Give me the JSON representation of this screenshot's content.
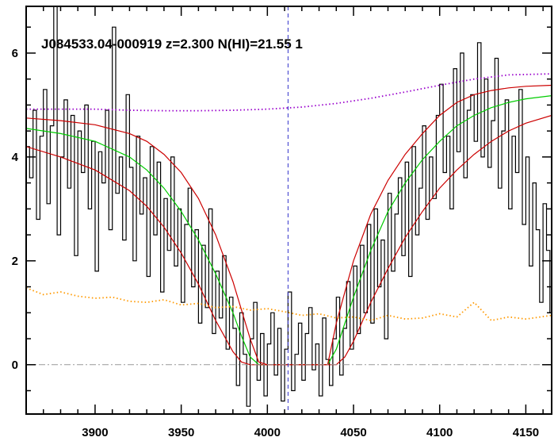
{
  "chart_data": {
    "type": "line",
    "title": "J084533.04-000919 z=2.300 N(HI)=21.55 1",
    "xlabel": "",
    "ylabel": "",
    "xlim": [
      3860,
      4165
    ],
    "ylim": [
      -0.95,
      6.9
    ],
    "xticks": [
      3900,
      3950,
      4000,
      4050,
      4100,
      4150
    ],
    "yticks": [
      0,
      2,
      4,
      6
    ],
    "grid": false,
    "reference_lines": {
      "vertical_dashed_x": 4012,
      "horizontal_dashdot_y": 0
    },
    "colors": {
      "flux": "#000000",
      "fit": "#00cc00",
      "fit_bounds": "#cc0000",
      "continuum": "#9900cc",
      "error": "#ff9900",
      "vline": "#3333cc",
      "hline": "#999999"
    },
    "series": [
      {
        "style": "steps",
        "color": "#000000",
        "x": [
          3860,
          3862,
          3864,
          3866,
          3868,
          3870,
          3872,
          3874,
          3876,
          3878,
          3880,
          3882,
          3884,
          3886,
          3888,
          3890,
          3892,
          3894,
          3896,
          3898,
          3900,
          3902,
          3904,
          3906,
          3908,
          3910,
          3912,
          3914,
          3916,
          3918,
          3920,
          3922,
          3924,
          3926,
          3928,
          3930,
          3932,
          3934,
          3936,
          3938,
          3940,
          3942,
          3944,
          3946,
          3948,
          3950,
          3952,
          3954,
          3956,
          3958,
          3960,
          3962,
          3964,
          3966,
          3968,
          3970,
          3972,
          3974,
          3976,
          3978,
          3980,
          3982,
          3984,
          3986,
          3988,
          3990,
          3992,
          3994,
          3996,
          3998,
          4000,
          4002,
          4004,
          4006,
          4008,
          4010,
          4012,
          4014,
          4016,
          4018,
          4020,
          4022,
          4024,
          4026,
          4028,
          4030,
          4032,
          4034,
          4036,
          4038,
          4040,
          4042,
          4044,
          4046,
          4048,
          4050,
          4052,
          4054,
          4056,
          4058,
          4060,
          4062,
          4064,
          4066,
          4068,
          4070,
          4072,
          4074,
          4076,
          4078,
          4080,
          4082,
          4084,
          4086,
          4088,
          4090,
          4092,
          4094,
          4096,
          4098,
          4100,
          4102,
          4104,
          4106,
          4108,
          4110,
          4112,
          4114,
          4116,
          4118,
          4120,
          4122,
          4124,
          4126,
          4128,
          4130,
          4132,
          4134,
          4136,
          4138,
          4140,
          4142,
          4144,
          4146,
          4148,
          4150,
          4152,
          4154,
          4156,
          4158,
          4160,
          4162,
          4164
        ],
        "y": [
          4.2,
          3.6,
          4.9,
          2.8,
          4.4,
          5.3,
          3.1,
          4.6,
          6.9,
          2.5,
          4.0,
          5.1,
          3.4,
          4.8,
          2.1,
          4.5,
          3.7,
          5.0,
          3.0,
          4.3,
          1.8,
          4.1,
          3.5,
          4.9,
          2.6,
          6.5,
          3.3,
          4.0,
          2.4,
          5.2,
          3.8,
          2.0,
          4.4,
          2.9,
          3.6,
          1.7,
          4.2,
          2.5,
          3.9,
          1.4,
          3.2,
          2.2,
          4.0,
          1.9,
          3.0,
          1.2,
          2.7,
          3.4,
          1.5,
          2.6,
          0.8,
          2.3,
          1.1,
          3.0,
          0.6,
          1.8,
          0.9,
          2.1,
          0.3,
          1.3,
          0.7,
          -0.4,
          1.0,
          0.2,
          -0.8,
          0.5,
          1.2,
          -0.3,
          0.6,
          -0.6,
          0.4,
          1.0,
          -0.2,
          0.7,
          -0.7,
          0.3,
          1.4,
          -0.5,
          0.2,
          0.8,
          -0.3,
          0.6,
          1.1,
          -0.1,
          0.4,
          -0.6,
          0.9,
          0.1,
          -0.4,
          0.5,
          1.3,
          -0.2,
          0.7,
          1.6,
          0.3,
          1.9,
          0.6,
          2.3,
          1.0,
          2.7,
          0.8,
          3.0,
          1.5,
          2.4,
          0.5,
          3.3,
          1.8,
          2.9,
          3.6,
          2.1,
          3.9,
          1.7,
          4.2,
          2.5,
          3.4,
          4.6,
          2.8,
          4.0,
          3.2,
          4.8,
          5.4,
          3.7,
          4.4,
          3.0,
          5.7,
          4.1,
          6.0,
          3.6,
          4.9,
          5.2,
          4.3,
          6.2,
          4.0,
          5.5,
          3.8,
          4.7,
          5.9,
          3.4,
          4.5,
          5.1,
          3.0,
          4.4,
          3.7,
          5.3,
          2.7,
          4.0,
          1.9,
          3.5,
          2.6,
          1.2,
          3.1,
          2.2,
          1.0
        ]
      },
      {
        "style": "line",
        "color": "#00cc00",
        "x": [
          3860,
          3880,
          3900,
          3920,
          3930,
          3940,
          3950,
          3960,
          3970,
          3980,
          3985,
          3990,
          3995,
          4000,
          4010,
          4020,
          4030,
          4035,
          4040,
          4045,
          4050,
          4060,
          4070,
          4080,
          4090,
          4100,
          4110,
          4120,
          4130,
          4140,
          4150,
          4165
        ],
        "y": [
          4.55,
          4.45,
          4.3,
          4.0,
          3.75,
          3.4,
          2.95,
          2.4,
          1.75,
          1.0,
          0.55,
          0.15,
          0.0,
          0.0,
          0.0,
          0.0,
          0.0,
          0.0,
          0.3,
          0.8,
          1.3,
          2.2,
          2.95,
          3.5,
          3.95,
          4.3,
          4.6,
          4.8,
          4.95,
          5.05,
          5.12,
          5.18
        ]
      },
      {
        "style": "line",
        "color": "#cc0000",
        "x": [
          3860,
          3880,
          3900,
          3920,
          3930,
          3940,
          3950,
          3960,
          3970,
          3980,
          3990,
          3995,
          4000,
          4010,
          4020,
          4030,
          4035,
          4040,
          4045,
          4050,
          4060,
          4070,
          4080,
          4090,
          4100,
          4110,
          4120,
          4130,
          4140,
          4150,
          4165
        ],
        "y": [
          4.75,
          4.7,
          4.62,
          4.45,
          4.3,
          4.05,
          3.7,
          3.2,
          2.5,
          1.6,
          0.5,
          0.05,
          0.0,
          0.0,
          0.0,
          0.0,
          0.0,
          0.8,
          1.4,
          2.0,
          2.9,
          3.55,
          4.05,
          4.45,
          4.8,
          5.05,
          5.2,
          5.28,
          5.33,
          5.36,
          5.38
        ]
      },
      {
        "style": "line",
        "color": "#cc0000",
        "x": [
          3860,
          3880,
          3900,
          3920,
          3930,
          3940,
          3950,
          3960,
          3970,
          3980,
          3985,
          3990,
          4000,
          4010,
          4020,
          4030,
          4040,
          4045,
          4050,
          4060,
          4070,
          4080,
          4090,
          4100,
          4110,
          4120,
          4130,
          4140,
          4150,
          4165
        ],
        "y": [
          4.2,
          4.0,
          3.75,
          3.35,
          3.05,
          2.65,
          2.15,
          1.55,
          0.85,
          0.25,
          0.05,
          0.0,
          0.0,
          0.0,
          0.0,
          0.0,
          0.0,
          0.15,
          0.45,
          1.2,
          1.85,
          2.45,
          2.95,
          3.4,
          3.75,
          4.05,
          4.3,
          4.5,
          4.65,
          4.8
        ]
      },
      {
        "style": "dotted",
        "color": "#9900cc",
        "x": [
          3860,
          3880,
          3900,
          3920,
          3940,
          3960,
          3980,
          4000,
          4020,
          4040,
          4060,
          4080,
          4100,
          4120,
          4140,
          4165
        ],
        "y": [
          4.92,
          4.92,
          4.92,
          4.9,
          4.89,
          4.89,
          4.9,
          4.92,
          4.96,
          5.03,
          5.13,
          5.25,
          5.38,
          5.5,
          5.58,
          5.6
        ]
      },
      {
        "style": "dotted",
        "color": "#ff9900",
        "x": [
          3860,
          3870,
          3880,
          3890,
          3900,
          3910,
          3920,
          3930,
          3940,
          3950,
          3960,
          3970,
          3980,
          3990,
          4000,
          4010,
          4020,
          4030,
          4040,
          4050,
          4060,
          4070,
          4080,
          4090,
          4100,
          4110,
          4120,
          4130,
          4140,
          4150,
          4165
        ],
        "y": [
          1.48,
          1.35,
          1.4,
          1.32,
          1.28,
          1.3,
          1.22,
          1.2,
          1.25,
          1.15,
          1.18,
          1.1,
          1.12,
          1.05,
          1.08,
          1.02,
          0.95,
          0.98,
          0.9,
          0.92,
          0.85,
          0.95,
          0.88,
          0.9,
          0.98,
          0.92,
          1.2,
          0.85,
          0.92,
          0.88,
          0.95
        ]
      }
    ]
  }
}
